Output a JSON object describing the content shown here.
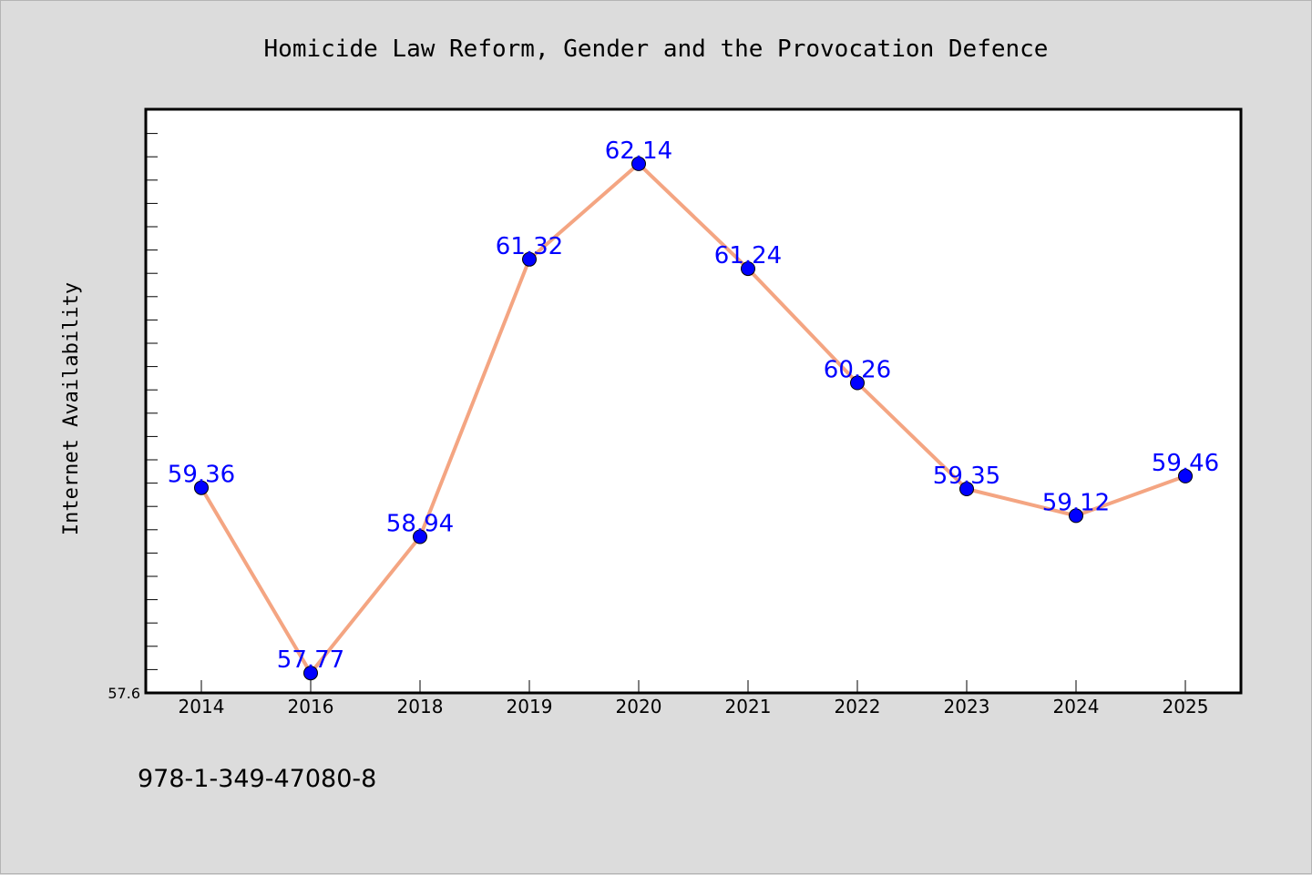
{
  "chart_data": {
    "type": "line",
    "title": "Homicide Law Reform, Gender and the Provocation Defence",
    "xlabel": "",
    "ylabel": "Internet Availability",
    "categories": [
      "2014",
      "2016",
      "2018",
      "2019",
      "2020",
      "2021",
      "2022",
      "2023",
      "2024",
      "2025"
    ],
    "values": [
      59.36,
      57.77,
      58.94,
      61.32,
      62.14,
      61.24,
      60.26,
      59.35,
      59.12,
      59.46
    ],
    "value_labels": [
      "59.36",
      "57.77",
      "58.94",
      "61.32",
      "62.14",
      "61.24",
      "60.26",
      "59.35",
      "59.12",
      "59.46"
    ],
    "ylim": [
      57.6,
      62.6
    ],
    "ytick_labels": [
      "57.6"
    ],
    "grid": false,
    "legend": "none",
    "line_color": "#f4a582",
    "marker_color": "#0000ff",
    "label_color": "#0000ff",
    "footer_text": "978-1-349-47080-8"
  }
}
